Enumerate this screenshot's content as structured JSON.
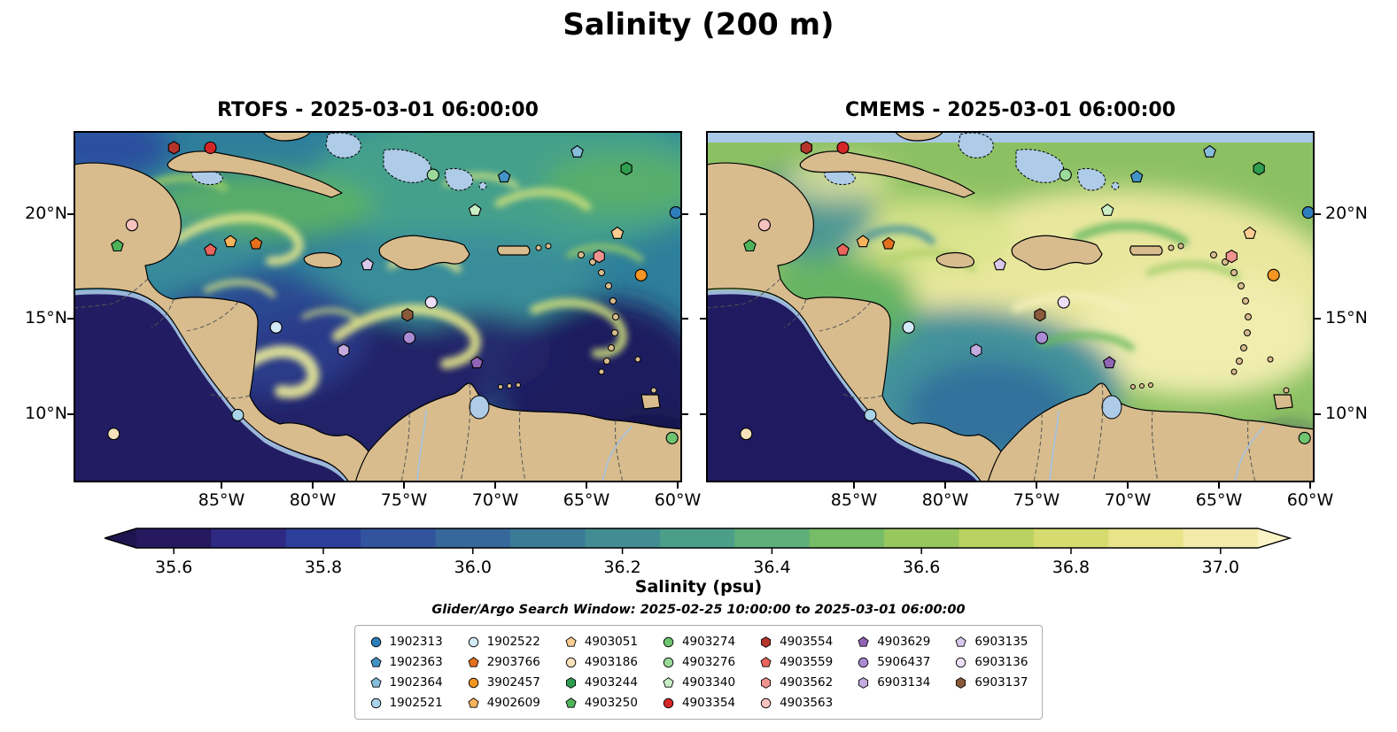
{
  "title": "Salinity (200 m)",
  "panels": [
    {
      "title": "RTOFS - 2025-03-01 06:00:00"
    },
    {
      "title": "CMEMS - 2025-03-01 06:00:00"
    }
  ],
  "axes": {
    "lat_ticks": [
      "20°N",
      "15°N",
      "10°N"
    ],
    "lon_ticks": [
      "85°W",
      "80°W",
      "75°W",
      "70°W",
      "65°W",
      "60°W"
    ]
  },
  "colorbar": {
    "label": "Salinity (psu)",
    "ticks": [
      "35.6",
      "35.8",
      "36.0",
      "36.2",
      "36.4",
      "36.6",
      "36.8",
      "37.0"
    ],
    "tick_values": [
      35.6,
      35.8,
      36.0,
      36.2,
      36.4,
      36.6,
      36.8,
      37.0
    ],
    "range": [
      35.55,
      37.05
    ],
    "band_colors": [
      "#26195f",
      "#2e2a83",
      "#2e3f9b",
      "#32549e",
      "#36689b",
      "#3b7b98",
      "#418d93",
      "#4b9f89",
      "#5dae79",
      "#77bc66",
      "#97c75d",
      "#b8d160",
      "#d5db6e",
      "#e9e389",
      "#f3ebaa"
    ],
    "extend_left": "#1e1550",
    "extend_right": "#f9f3c6"
  },
  "search_window": "Glider/Argo Search Window: 2025-02-25 10:00:00 to 2025-03-01 06:00:00",
  "legend": {
    "items": [
      {
        "id": "1902313",
        "shape": "circle",
        "color": "#2e7ebc"
      },
      {
        "id": "1902363",
        "shape": "pentagon",
        "color": "#4293c6"
      },
      {
        "id": "1902364",
        "shape": "pentagon",
        "color": "#86bdda"
      },
      {
        "id": "1902521",
        "shape": "circle",
        "color": "#a8d3e8"
      },
      {
        "id": "1902522",
        "shape": "circle",
        "color": "#d3e9f5"
      },
      {
        "id": "2903766",
        "shape": "pentagon",
        "color": "#e4701e"
      },
      {
        "id": "3902457",
        "shape": "circle",
        "color": "#f59522"
      },
      {
        "id": "4902609",
        "shape": "pentagon",
        "color": "#f8b35c"
      },
      {
        "id": "4903051",
        "shape": "pentagon",
        "color": "#fbcd92"
      },
      {
        "id": "4903186",
        "shape": "circle",
        "color": "#f8e2ba"
      },
      {
        "id": "4903244",
        "shape": "hexagon",
        "color": "#2f9e4f"
      },
      {
        "id": "4903250",
        "shape": "pentagon",
        "color": "#4fb35a"
      },
      {
        "id": "4903274",
        "shape": "circle",
        "color": "#6ec46f"
      },
      {
        "id": "4903276",
        "shape": "circle",
        "color": "#9bda9b"
      },
      {
        "id": "4903340",
        "shape": "pentagon",
        "color": "#c9edc4"
      },
      {
        "id": "4903354",
        "shape": "circle",
        "color": "#d62728"
      },
      {
        "id": "4903554",
        "shape": "hexagon",
        "color": "#b5352c"
      },
      {
        "id": "4903559",
        "shape": "pentagon",
        "color": "#e8645c"
      },
      {
        "id": "4903562",
        "shape": "hexagon",
        "color": "#f0938f"
      },
      {
        "id": "4903563",
        "shape": "circle",
        "color": "#f7c2c0"
      },
      {
        "id": "4903629",
        "shape": "pentagon",
        "color": "#9065b5"
      },
      {
        "id": "5906437",
        "shape": "circle",
        "color": "#ab8bd3"
      },
      {
        "id": "6903134",
        "shape": "hexagon",
        "color": "#c3abdf"
      },
      {
        "id": "6903135",
        "shape": "pentagon",
        "color": "#d9c9ec"
      },
      {
        "id": "6903136",
        "shape": "circle",
        "color": "#ecdff6"
      },
      {
        "id": "6903137",
        "shape": "hexagon",
        "color": "#8a5a3b"
      }
    ]
  },
  "chart_data": {
    "type": "heatmap",
    "title": "Salinity (200 m)",
    "variable": "salinity",
    "units": "psu",
    "depth_m": 200,
    "panels": [
      {
        "model": "RTOFS",
        "valid_time": "2025-03-01 06:00:00"
      },
      {
        "model": "CMEMS",
        "valid_time": "2025-03-01 06:00:00"
      }
    ],
    "lon_range": [
      -93.0,
      -59.7
    ],
    "lat_range": [
      7.2,
      24.1
    ],
    "lon_ticks_deg_w": [
      85,
      80,
      75,
      70,
      65,
      60
    ],
    "lat_ticks_deg_n": [
      20,
      15,
      10
    ],
    "colorbar_range": [
      35.55,
      37.05
    ],
    "colorbar_ticks": [
      35.6,
      35.8,
      36.0,
      36.2,
      36.4,
      36.6,
      36.8,
      37.0
    ],
    "search_window": {
      "start": "2025-02-25 10:00:00",
      "end": "2025-03-01 06:00:00"
    },
    "platforms": [
      {
        "id": "1902313",
        "lon": -60.0,
        "lat": 20.1
      },
      {
        "id": "1902363",
        "lon": -69.4,
        "lat": 21.8
      },
      {
        "id": "1902364",
        "lon": -65.4,
        "lat": 23.0
      },
      {
        "id": "1902521",
        "lon": -84.0,
        "lat": 10.4
      },
      {
        "id": "1902522",
        "lon": -81.9,
        "lat": 14.6
      },
      {
        "id": "2903766",
        "lon": -83.0,
        "lat": 18.6
      },
      {
        "id": "3902457",
        "lon": -61.9,
        "lat": 17.1
      },
      {
        "id": "4902609",
        "lon": -84.4,
        "lat": 18.7
      },
      {
        "id": "4903051",
        "lon": -63.2,
        "lat": 19.1
      },
      {
        "id": "4903186",
        "lon": -90.8,
        "lat": 9.5
      },
      {
        "id": "4903244",
        "lon": -62.7,
        "lat": 22.2
      },
      {
        "id": "4903250",
        "lon": -90.6,
        "lat": 18.5
      },
      {
        "id": "4903274",
        "lon": -60.2,
        "lat": 9.3
      },
      {
        "id": "4903276",
        "lon": -73.3,
        "lat": 21.9
      },
      {
        "id": "4903340",
        "lon": -71.0,
        "lat": 20.2
      },
      {
        "id": "4903354",
        "lon": -85.5,
        "lat": 23.2
      },
      {
        "id": "4903554",
        "lon": -87.5,
        "lat": 23.2
      },
      {
        "id": "4903559",
        "lon": -85.5,
        "lat": 18.3
      },
      {
        "id": "4903562",
        "lon": -64.2,
        "lat": 18.0
      },
      {
        "id": "4903563",
        "lon": -89.8,
        "lat": 19.5
      },
      {
        "id": "4903629",
        "lon": -70.9,
        "lat": 12.9
      },
      {
        "id": "5906437",
        "lon": -74.6,
        "lat": 14.1
      },
      {
        "id": "6903134",
        "lon": -78.2,
        "lat": 13.5
      },
      {
        "id": "6903135",
        "lon": -76.9,
        "lat": 17.6
      },
      {
        "id": "6903136",
        "lon": -73.4,
        "lat": 15.8
      },
      {
        "id": "6903137",
        "lon": -74.7,
        "lat": 15.2
      }
    ]
  }
}
